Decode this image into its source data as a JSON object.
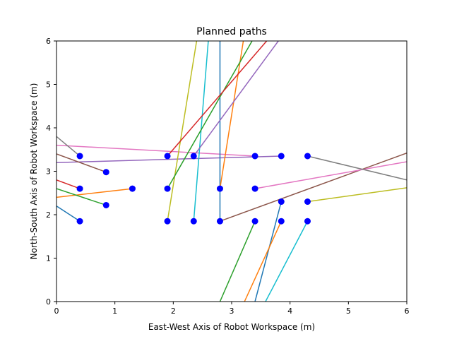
{
  "chart_data": {
    "type": "line",
    "title": "Planned paths",
    "xlabel": "East-West Axis of Robot Workspace (m)",
    "ylabel": "North-South Axis of Robot Workspace (m)",
    "xlim": [
      0,
      6
    ],
    "ylim": [
      0,
      6
    ],
    "xticks": [
      "0",
      "1",
      "2",
      "3",
      "4",
      "5",
      "6"
    ],
    "yticks": [
      "0",
      "1",
      "2",
      "3",
      "4",
      "5",
      "6"
    ],
    "grid": false,
    "legend": "none",
    "series": [
      {
        "color": "#1f77b4",
        "points": [
          [
            0.0,
            2.2
          ],
          [
            0.4,
            1.85
          ]
        ]
      },
      {
        "color": "#ff7f0e",
        "points": [
          [
            0.0,
            2.4
          ],
          [
            1.3,
            2.6
          ]
        ]
      },
      {
        "color": "#2ca02c",
        "points": [
          [
            0.0,
            2.6
          ],
          [
            0.85,
            2.22
          ]
        ]
      },
      {
        "color": "#d62728",
        "points": [
          [
            0.0,
            2.8
          ],
          [
            0.4,
            2.6
          ]
        ]
      },
      {
        "color": "#9467bd",
        "points": [
          [
            0.0,
            3.2
          ],
          [
            3.85,
            3.35
          ]
        ]
      },
      {
        "color": "#8c564b",
        "points": [
          [
            0.0,
            3.4
          ],
          [
            0.85,
            2.98
          ]
        ]
      },
      {
        "color": "#e377c2",
        "points": [
          [
            0.0,
            3.6
          ],
          [
            3.4,
            3.35
          ]
        ]
      },
      {
        "color": "#7f7f7f",
        "points": [
          [
            0.0,
            3.8
          ],
          [
            0.4,
            3.35
          ]
        ]
      },
      {
        "color": "#bcbd22",
        "points": [
          [
            1.9,
            1.85
          ],
          [
            2.4,
            6.0
          ]
        ]
      },
      {
        "color": "#17becf",
        "points": [
          [
            2.35,
            1.85
          ],
          [
            2.6,
            6.0
          ]
        ]
      },
      {
        "color": "#1f77b4",
        "points": [
          [
            2.8,
            1.85
          ],
          [
            2.8,
            6.0
          ]
        ]
      },
      {
        "color": "#ff7f0e",
        "points": [
          [
            2.8,
            2.6
          ],
          [
            3.2,
            6.0
          ]
        ]
      },
      {
        "color": "#2ca02c",
        "points": [
          [
            1.9,
            2.6
          ],
          [
            3.35,
            6.0
          ]
        ]
      },
      {
        "color": "#d62728",
        "points": [
          [
            1.9,
            3.35
          ],
          [
            3.6,
            6.0
          ]
        ]
      },
      {
        "color": "#9467bd",
        "points": [
          [
            2.35,
            3.35
          ],
          [
            3.8,
            6.0
          ]
        ]
      },
      {
        "color": "#8c564b",
        "points": [
          [
            2.8,
            1.85
          ],
          [
            6.0,
            3.42
          ]
        ]
      },
      {
        "color": "#e377c2",
        "points": [
          [
            3.4,
            2.6
          ],
          [
            6.0,
            3.22
          ]
        ]
      },
      {
        "color": "#7f7f7f",
        "points": [
          [
            4.3,
            3.35
          ],
          [
            6.0,
            2.8
          ]
        ]
      },
      {
        "color": "#bcbd22",
        "points": [
          [
            4.3,
            2.3
          ],
          [
            6.0,
            2.62
          ]
        ]
      },
      {
        "color": "#17becf",
        "points": [
          [
            3.58,
            0.0
          ],
          [
            4.3,
            1.85
          ]
        ]
      },
      {
        "color": "#1f77b4",
        "points": [
          [
            3.4,
            0.0
          ],
          [
            3.85,
            2.3
          ]
        ]
      },
      {
        "color": "#ff7f0e",
        "points": [
          [
            3.22,
            0.0
          ],
          [
            3.85,
            1.85
          ]
        ]
      },
      {
        "color": "#2ca02c",
        "points": [
          [
            2.8,
            0.0
          ],
          [
            3.4,
            1.85
          ]
        ]
      }
    ],
    "markers": {
      "color": "#0000ff",
      "points": [
        [
          0.4,
          1.85
        ],
        [
          0.4,
          2.6
        ],
        [
          0.4,
          3.35
        ],
        [
          0.85,
          2.22
        ],
        [
          0.85,
          2.98
        ],
        [
          1.3,
          2.6
        ],
        [
          1.9,
          1.85
        ],
        [
          1.9,
          2.6
        ],
        [
          1.9,
          3.35
        ],
        [
          2.35,
          1.85
        ],
        [
          2.35,
          3.35
        ],
        [
          2.8,
          1.85
        ],
        [
          2.8,
          2.6
        ],
        [
          3.4,
          1.85
        ],
        [
          3.4,
          2.6
        ],
        [
          3.4,
          3.35
        ],
        [
          3.85,
          1.85
        ],
        [
          3.85,
          2.3
        ],
        [
          3.85,
          3.35
        ],
        [
          4.3,
          1.85
        ],
        [
          4.3,
          2.3
        ],
        [
          4.3,
          3.35
        ]
      ]
    }
  }
}
